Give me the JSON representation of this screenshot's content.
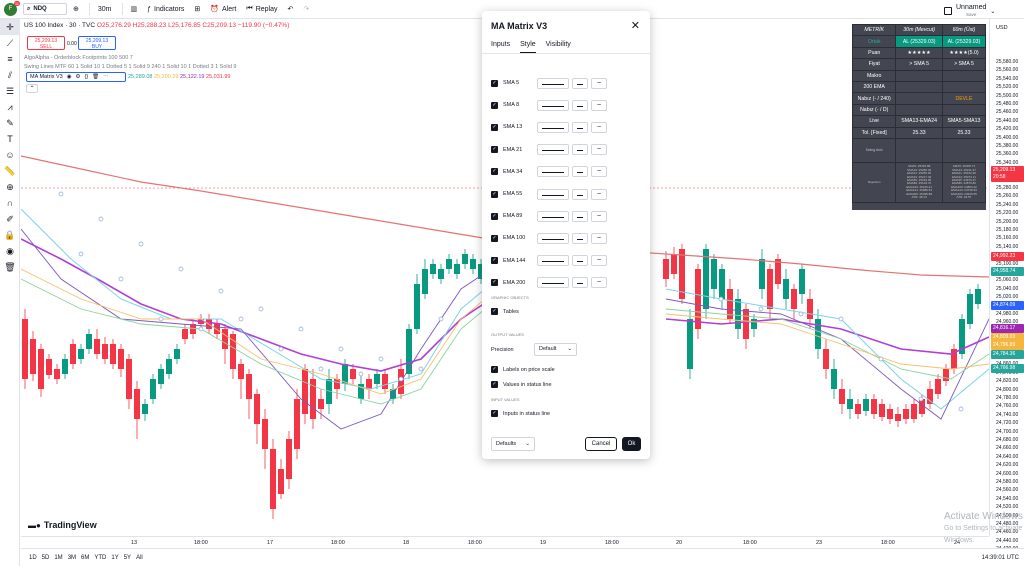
{
  "topbar": {
    "avatar_letter": "F",
    "notif_count": "11",
    "symbol": "NDQ",
    "timeframe": "30m",
    "indicators_label": "Indicators",
    "alert_label": "Alert",
    "replay_label": "Replay",
    "layout_name": "Unnamed",
    "layout_status": "Save"
  },
  "legend": {
    "title": "US 100 Index · 30 · TVC",
    "ohlc": "O25,276.29 H25,288.23 L25,176.85 C25,209.13 −119.90 (−0.47%)",
    "sell_price": "25,209.13",
    "sell_label": "SELL",
    "buy_price": "25,209.13",
    "buy_label": "BUY",
    "spread": "0.00",
    "indicator1": "AlgoAlpha - Orderblock Footprints 100 500 7",
    "indicator2": "Swing Lines MTF 60 1 Solid 10 1 Dotted 5 1 Solid 9 240 1 Solid 10 1 Dotted 3 1 Solid 9",
    "ma_name": "MA Matrix V3",
    "ma_values": [
      {
        "v": "25,289.08",
        "c": "#26a69a"
      },
      {
        "v": "25,200.29",
        "c": "#f5b63f"
      },
      {
        "v": "25,122.19",
        "c": "#9c27b0"
      },
      {
        "v": "25,031.99",
        "c": "#f23645"
      }
    ]
  },
  "metrik": {
    "header": [
      "METRİK",
      "30m (Mevcut)",
      "60m (Üst)"
    ],
    "rows": [
      [
        "Ortak",
        "AL (25329.03)",
        "AL (25329.03)"
      ],
      [
        "Puan",
        "★★★★★",
        "★★★★(5.0)"
      ],
      [
        "Fiyat",
        "> SMA 5",
        "> SMA 5"
      ],
      [
        "Makro",
        "",
        ""
      ],
      [
        "200 EMA",
        "",
        ""
      ],
      [
        "Nabız (- / 240)",
        "",
        "DEVLE"
      ],
      [
        "Nabız (- / D)",
        "",
        ""
      ],
      [
        "Live",
        "SMA13-EMA24",
        "SMA5-SMA13"
      ],
      [
        "Tol. [Fixed]",
        "25.33",
        "25.33"
      ]
    ],
    "swing_label": "Swing Anlz",
    "rejection_label": "Rejection",
    "detail_col1": "SMA5: 25325.88\nSMA13: 25280.46\nEMA21: 25256.90\nEMA34: 25217.49\nEMA55: 25183.05\nEMA89: 25148.76\nEMA100: 25136.21\nEMA144: 25089.54\nEMA200: 25035.88\nATR: 48.13",
    "detail_col2": "SMA5: 25305.71\nSMA13: 25211.37\nEMA21: 25162.90\nEMA34: 25074.11\nEMA55: 24976.47\nEMA89: 24876.82\nEMA100: 24850.22\nEMA144: 24749.93\nEMA200: 24645.55\nATR: 94.57"
  },
  "dialog": {
    "title": "MA Matrix V3",
    "tabs": [
      "Inputs",
      "Style",
      "Visibility"
    ],
    "mas": [
      "SMA 5",
      "SMA 8",
      "SMA 13",
      "EMA 21",
      "EMA 34",
      "EMA 55",
      "EMA 89",
      "EMA 100",
      "EMA 144",
      "EMA 200"
    ],
    "graphic_objects": "GRAPHIC OBJECTS",
    "tables_label": "Tables",
    "output_values": "OUTPUT VALUES",
    "precision_label": "Precision",
    "precision_value": "Default",
    "labels_on_scale": "Labels on price scale",
    "values_in_status": "Values in status line",
    "input_values": "INPUT VALUES",
    "inputs_in_status": "Inputs in status line",
    "defaults_label": "Defaults",
    "cancel_label": "Cancel",
    "ok_label": "Ok"
  },
  "price_scale": {
    "currency": "USD",
    "ticks": [
      "25,580.00",
      "25,560.00",
      "25,540.00",
      "25,520.00",
      "25,500.00",
      "25,480.00",
      "25,460.00",
      "25,440.00",
      "25,420.00",
      "25,400.00",
      "25,380.00",
      "25,360.00",
      "25,340.00",
      "25,320.00",
      "25,300.00",
      "25,280.00",
      "25,260.00",
      "25,240.00",
      "25,220.00",
      "25,200.00",
      "25,180.00",
      "25,160.00",
      "25,140.00",
      "25,120.00",
      "25,100.00",
      "25,080.00",
      "25,060.00",
      "25,040.00",
      "25,020.00",
      "25,000.00",
      "24,980.00",
      "24,960.00",
      "24,940.00",
      "24,920.00",
      "24,900.00",
      "24,880.00",
      "24,860.00",
      "24,840.00",
      "24,820.00",
      "24,800.00",
      "24,780.00",
      "24,760.00",
      "24,740.00",
      "24,720.00",
      "24,700.00",
      "24,680.00",
      "24,660.00",
      "24,640.00",
      "24,620.00",
      "24,600.00",
      "24,580.00",
      "24,560.00",
      "24,540.00",
      "24,520.00",
      "24,500.00",
      "24,480.00",
      "24,460.00",
      "24,440.00",
      "24,420.00"
    ],
    "labels": [
      {
        "v": "25,209.13",
        "sub": "20:58",
        "c": "#f23645"
      },
      {
        "v": "24,992.23",
        "c": "#f23645"
      },
      {
        "v": "24,958.74",
        "c": "#26a69a"
      },
      {
        "v": "24,874.09",
        "c": "#2962ff"
      },
      {
        "v": "24,816.17",
        "c": "#9c27b0"
      },
      {
        "v": "24,809.03",
        "c": "#f5b63f"
      },
      {
        "v": "24,796.89",
        "c": "#f5b63f"
      },
      {
        "v": "24,784.36",
        "c": "#26a69a"
      },
      {
        "v": "24,766.98",
        "c": "#26a69a"
      }
    ]
  },
  "time_scale": [
    "13",
    "18:00",
    "17",
    "18:00",
    "18",
    "18:00",
    "19",
    "18:00",
    "20",
    "18:00",
    "23",
    "18:00",
    "24"
  ],
  "bottombar": {
    "ranges": [
      "1D",
      "5D",
      "1M",
      "3M",
      "6M",
      "YTD",
      "1Y",
      "5Y",
      "All"
    ],
    "clock": "14:39:01 UTC"
  },
  "branding": "TradingView",
  "watermark": {
    "title": "Activate Windows",
    "sub": "Go to Settings to activate Windows."
  },
  "colors": {
    "up": "#089981",
    "down": "#f23645",
    "ema200": "#e57373",
    "ma_purple": "#b03fd6"
  }
}
